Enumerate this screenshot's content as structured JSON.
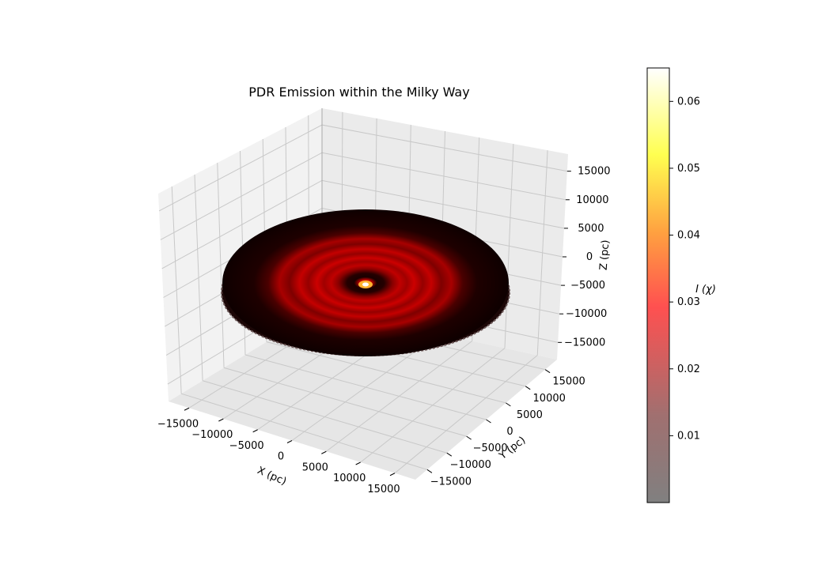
{
  "chart_data": {
    "type": "surface3d",
    "title": "PDR Emission within the Milky Way",
    "xlabel": "X (pc)",
    "ylabel": "Y (pc)",
    "zlabel": "Z (pc)",
    "xticks": [
      "−15000",
      "−10000",
      "−5000",
      "0",
      "5000",
      "10000",
      "15000"
    ],
    "yticks": [
      "15000",
      "10000",
      "5000",
      "0",
      "−5000",
      "−10000",
      "−15000"
    ],
    "zticks": [
      "15000",
      "10000",
      "5000",
      "0",
      "−5000",
      "−10000",
      "−15000"
    ],
    "xlim": [
      -18000,
      18000
    ],
    "ylim": [
      -18000,
      18000
    ],
    "zlim": [
      -18000,
      18000
    ],
    "disk": {
      "radius_pc": 18000,
      "rings_pc": [
        4000,
        6500,
        8800,
        11000,
        13000
      ],
      "center_hotspot": true
    },
    "colorbar": {
      "label": "I (χ)",
      "colormap": "hot",
      "range": [
        0.0,
        0.065
      ],
      "ticks": [
        0.01,
        0.02,
        0.03,
        0.04,
        0.05,
        0.06
      ],
      "tick_labels": [
        "0.01",
        "0.02",
        "0.03",
        "0.04",
        "0.05",
        "0.06"
      ]
    },
    "pane_color": "#f2f2f2",
    "grid": true
  }
}
